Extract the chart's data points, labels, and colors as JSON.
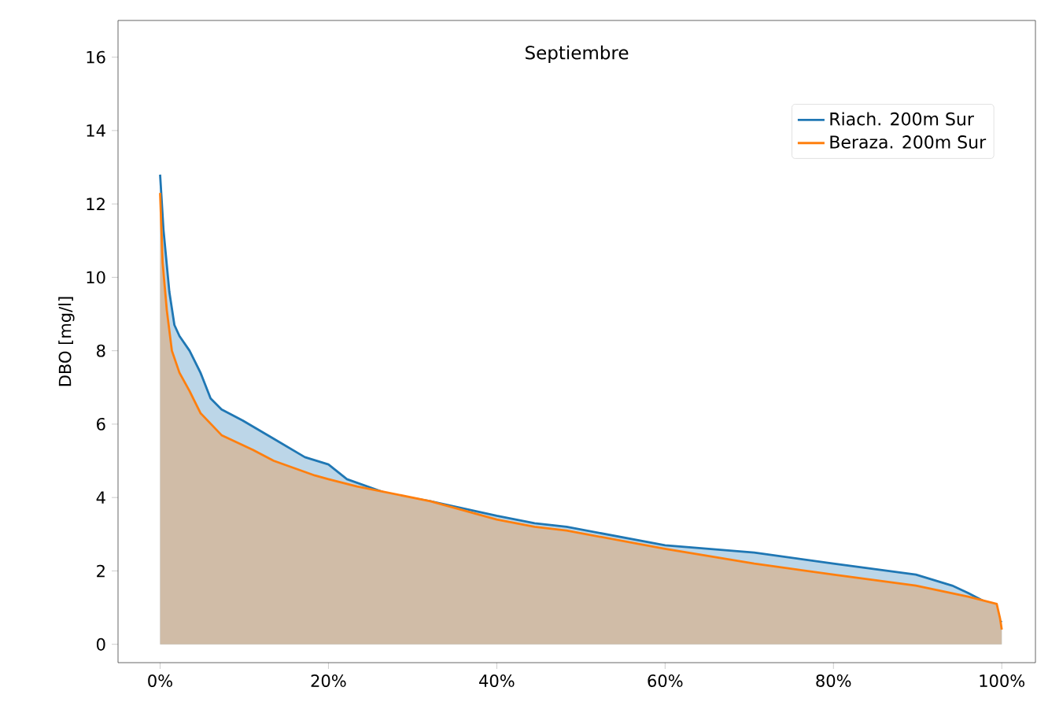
{
  "chart_data": {
    "type": "area",
    "title": "Septiembre",
    "ylabel": "DBO [mg/l]",
    "xlim": [
      -5,
      104
    ],
    "ylim": [
      -0.5,
      17
    ],
    "xticks": [
      {
        "value": 0,
        "label": "0%"
      },
      {
        "value": 20,
        "label": "20%"
      },
      {
        "value": 40,
        "label": "40%"
      },
      {
        "value": 60,
        "label": "60%"
      },
      {
        "value": 80,
        "label": "80%"
      },
      {
        "value": 100,
        "label": "100%"
      }
    ],
    "yticks": [
      0,
      2,
      4,
      6,
      8,
      10,
      12,
      14,
      16
    ],
    "legend": "top right",
    "grid": false,
    "series": [
      {
        "name": "Riach. 200m Sur",
        "color": "#1f77b4",
        "x": [
          0,
          0.4,
          1.1,
          1.7,
          2.3,
          3.5,
          4.8,
          6,
          7.3,
          9.8,
          13.5,
          17.2,
          20,
          22.2,
          27.1,
          32.1,
          40,
          44.5,
          48.3,
          60,
          70.6,
          80,
          89.8,
          94.1,
          96,
          98.5,
          99.4,
          100
        ],
        "values": [
          12.8,
          11.3,
          9.6,
          8.7,
          8.4,
          8.0,
          7.4,
          6.7,
          6.4,
          6.1,
          5.6,
          5.1,
          4.9,
          4.5,
          4.1,
          3.9,
          3.5,
          3.3,
          3.2,
          2.7,
          2.5,
          2.2,
          1.9,
          1.6,
          1.4,
          1.1,
          0.7,
          0.6
        ]
      },
      {
        "name": "Beraza. 200m Sur",
        "color": "#ff7f0e",
        "x": [
          0,
          0.3,
          0.8,
          1.4,
          2.3,
          3.5,
          4.8,
          7.3,
          11,
          13.5,
          18.4,
          20,
          23.4,
          32.1,
          40,
          44.5,
          48.3,
          60,
          70.6,
          80,
          89.8,
          96,
          99.4,
          99.8,
          100
        ],
        "values": [
          12.3,
          10.4,
          9.1,
          8.0,
          7.4,
          6.9,
          6.3,
          5.7,
          5.3,
          5.0,
          4.6,
          4.5,
          4.3,
          3.9,
          3.4,
          3.2,
          3.1,
          2.6,
          2.2,
          1.9,
          1.6,
          1.3,
          1.1,
          0.7,
          0.4
        ]
      }
    ]
  }
}
